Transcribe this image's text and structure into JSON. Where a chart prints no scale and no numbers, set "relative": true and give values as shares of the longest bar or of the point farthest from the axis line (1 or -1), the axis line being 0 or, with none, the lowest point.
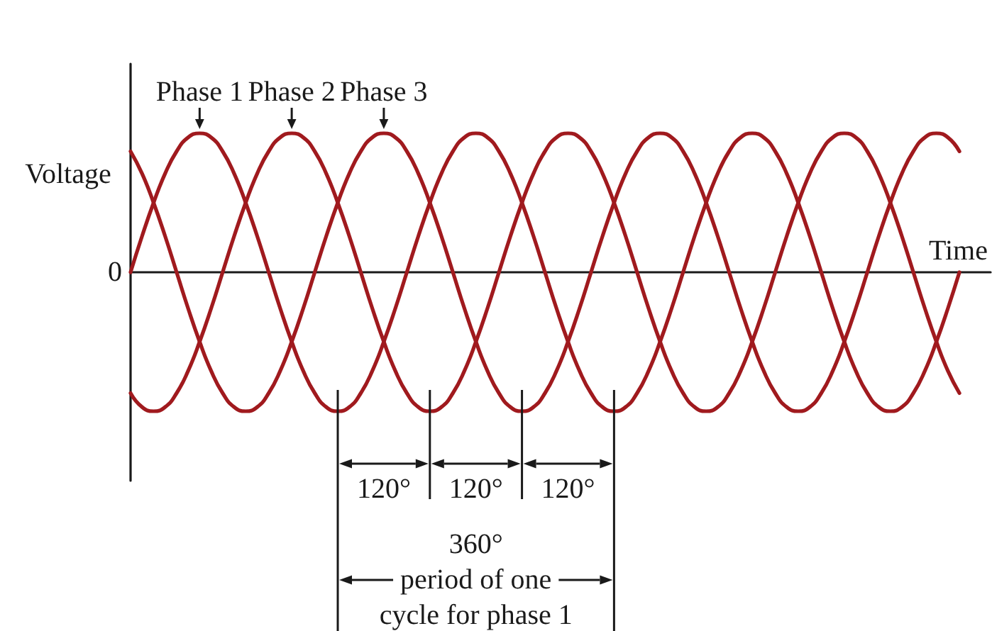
{
  "chart_data": {
    "type": "line",
    "relative": true,
    "xlabel": "Time",
    "ylabel": "Voltage",
    "marker": "none",
    "grid": false,
    "legend": false,
    "categories": [
      null,
      null,
      null,
      null,
      null,
      null,
      null,
      null,
      null,
      null,
      null,
      null,
      null,
      null,
      null,
      null,
      null,
      null,
      null,
      null,
      null,
      null,
      null,
      null,
      null,
      null,
      null,
      null,
      null,
      null,
      null,
      null,
      null,
      null,
      null,
      null,
      null,
      null,
      null,
      null,
      null,
      null,
      null,
      null,
      null,
      null,
      null,
      null,
      null,
      null,
      null,
      null,
      null,
      null,
      null,
      null,
      null,
      null,
      null,
      null,
      null,
      null,
      null,
      null,
      null,
      null,
      null,
      null,
      null,
      null,
      null,
      null,
      null
    ],
    "series": [
      {
        "name": "Phase 1",
        "color": "#a01a1e",
        "values": [
          0,
          0.26,
          0.5,
          0.71,
          0.87,
          0.97,
          1,
          0.97,
          0.87,
          0.71,
          0.5,
          0.26,
          0,
          -0.26,
          -0.5,
          -0.71,
          -0.87,
          -0.97,
          -1,
          -0.97,
          -0.87,
          -0.71,
          -0.5,
          -0.26,
          0,
          0.26,
          0.5,
          0.71,
          0.87,
          0.97,
          1,
          0.97,
          0.87,
          0.71,
          0.5,
          0.26,
          0,
          -0.26,
          -0.5,
          -0.71,
          -0.87,
          -0.97,
          -1,
          -0.97,
          -0.87,
          -0.71,
          -0.5,
          -0.26,
          0,
          0.26,
          0.5,
          0.71,
          0.87,
          0.97,
          1,
          0.97,
          0.87,
          0.71,
          0.5,
          0.26,
          0,
          -0.26,
          -0.5,
          -0.71,
          -0.87,
          -0.97,
          -1,
          -0.97,
          -0.87,
          -0.71,
          -0.5,
          -0.26,
          0
        ]
      },
      {
        "name": "Phase 2",
        "color": "#a01a1e",
        "values": [
          -0.87,
          -0.97,
          -1,
          -0.97,
          -0.87,
          -0.71,
          -0.5,
          -0.26,
          0,
          0.26,
          0.5,
          0.71,
          0.87,
          0.97,
          1,
          0.97,
          0.87,
          0.71,
          0.5,
          0.26,
          0,
          -0.26,
          -0.5,
          -0.71,
          -0.87,
          -0.97,
          -1,
          -0.97,
          -0.87,
          -0.71,
          -0.5,
          -0.26,
          0,
          0.26,
          0.5,
          0.71,
          0.87,
          0.97,
          1,
          0.97,
          0.87,
          0.71,
          0.5,
          0.26,
          0,
          -0.26,
          -0.5,
          -0.71,
          -0.87,
          -0.97,
          -1,
          -0.97,
          -0.87,
          -0.71,
          -0.5,
          -0.26,
          0,
          0.26,
          0.5,
          0.71,
          0.87,
          0.97,
          1,
          0.97,
          0.87,
          0.71,
          0.5,
          0.26,
          0,
          -0.26,
          -0.5,
          -0.71,
          -0.87
        ]
      },
      {
        "name": "Phase 3",
        "color": "#a01a1e",
        "values": [
          0.87,
          0.71,
          0.5,
          0.26,
          0,
          -0.26,
          -0.5,
          -0.71,
          -0.87,
          -0.97,
          -1,
          -0.97,
          -0.87,
          -0.71,
          -0.5,
          -0.26,
          0,
          0.26,
          0.5,
          0.71,
          0.87,
          0.97,
          1,
          0.97,
          0.87,
          0.71,
          0.5,
          0.26,
          0,
          -0.26,
          -0.5,
          -0.71,
          -0.87,
          -0.97,
          -1,
          -0.97,
          -0.87,
          -0.71,
          -0.5,
          -0.26,
          0,
          0.26,
          0.5,
          0.71,
          0.87,
          0.97,
          1,
          0.97,
          0.87,
          0.71,
          0.5,
          0.26,
          0,
          -0.26,
          -0.5,
          -0.71,
          -0.87,
          -0.97,
          -1,
          -0.97,
          -0.87,
          -0.71,
          -0.5,
          -0.26,
          0,
          0.26,
          0.5,
          0.71,
          0.87,
          0.97,
          1,
          0.97,
          0.87
        ]
      }
    ],
    "annotations": [
      "0",
      "120°",
      "120°",
      "120°",
      "360°",
      "period of one\ncycle for phase 1"
    ]
  }
}
